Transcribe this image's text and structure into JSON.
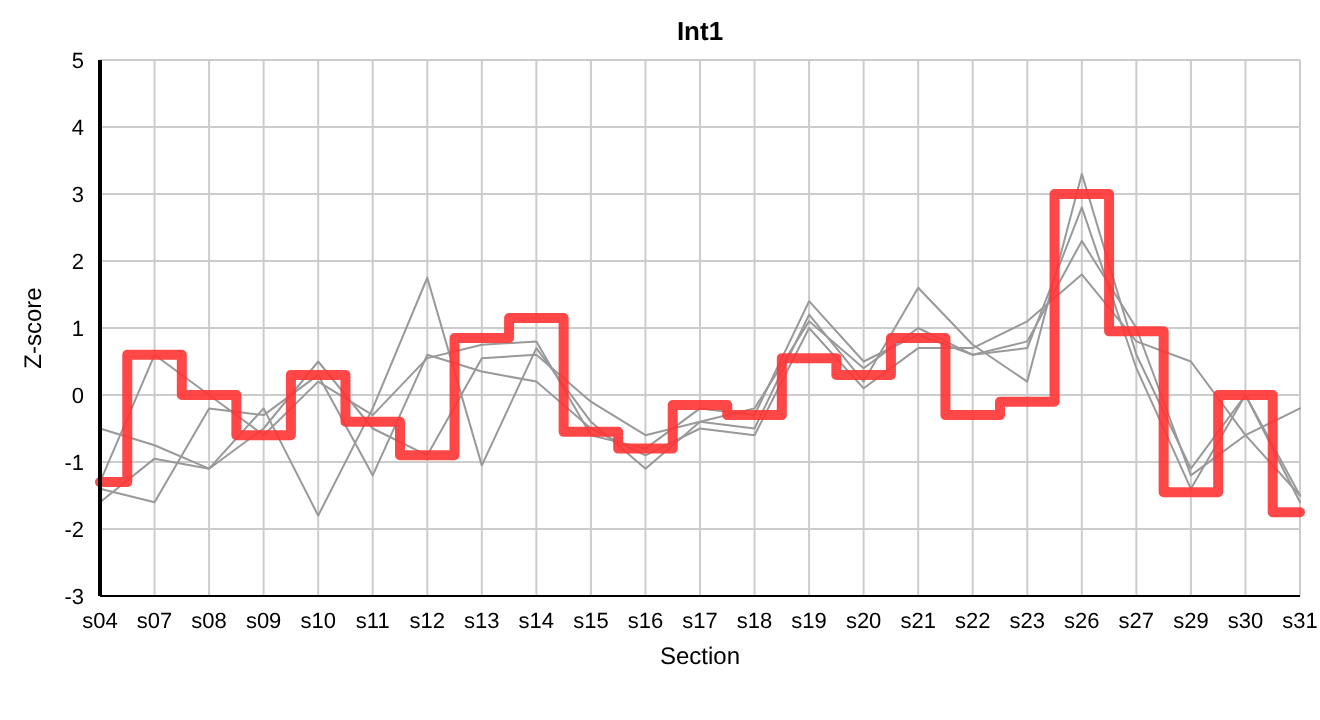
{
  "chart_data": {
    "type": "line",
    "title": "Int1",
    "xlabel": "Section",
    "ylabel": "Z-score",
    "categories": [
      "s04",
      "s07",
      "s08",
      "s09",
      "s10",
      "s11",
      "s12",
      "s13",
      "s14",
      "s15",
      "s16",
      "s17",
      "s18",
      "s19",
      "s20",
      "s21",
      "s22",
      "s23",
      "s26",
      "s27",
      "s29",
      "s30",
      "s31"
    ],
    "ylim": [
      -3,
      5
    ],
    "yticks": [
      -3,
      -2,
      -1,
      0,
      1,
      2,
      3,
      4,
      5
    ],
    "grid": true,
    "marker": "none",
    "line_style": "solid",
    "series": [
      {
        "type": "line",
        "color": "#999999",
        "values": [
          -0.5,
          -0.75,
          -1.1,
          -0.5,
          0.5,
          -0.5,
          -0.9,
          0.55,
          0.6,
          -0.1,
          -0.6,
          -0.4,
          -0.2,
          1.1,
          0.4,
          1.0,
          0.6,
          0.8,
          2.3,
          1.0,
          -1.2,
          -0.6,
          -1.5
        ]
      },
      {
        "type": "line",
        "color": "#999999",
        "values": [
          -1.6,
          -0.95,
          -1.1,
          -0.2,
          -1.8,
          -0.2,
          1.75,
          -1.05,
          0.7,
          -0.4,
          -1.1,
          -0.4,
          -0.5,
          1.2,
          0.2,
          1.6,
          0.75,
          0.2,
          3.3,
          0.6,
          -1.1,
          0.0,
          -1.6
        ]
      },
      {
        "type": "line",
        "color": "#999999",
        "values": [
          -1.3,
          0.6,
          0.0,
          -0.6,
          0.2,
          -0.3,
          0.55,
          0.75,
          0.8,
          -0.6,
          -0.8,
          -0.2,
          -0.3,
          1.4,
          0.5,
          0.9,
          0.6,
          0.7,
          2.8,
          0.4,
          -1.4,
          0.0,
          -1.5
        ]
      },
      {
        "type": "line",
        "color": "#999999",
        "values": [
          -1.4,
          -1.6,
          -0.2,
          -0.3,
          0.3,
          -1.2,
          0.6,
          0.35,
          0.2,
          -0.5,
          -0.9,
          -0.5,
          -0.6,
          1.0,
          0.1,
          0.7,
          0.7,
          1.1,
          1.8,
          0.8,
          0.5,
          -0.6,
          -0.2
        ]
      },
      {
        "type": "step",
        "color": "#ff3333",
        "values": [
          -1.3,
          0.6,
          0.0,
          -0.6,
          0.3,
          -0.4,
          -0.9,
          0.85,
          1.15,
          -0.55,
          -0.8,
          -0.15,
          -0.3,
          0.55,
          0.3,
          0.85,
          -0.3,
          -0.1,
          3.0,
          0.95,
          -1.45,
          0.0,
          -1.75
        ]
      }
    ]
  }
}
